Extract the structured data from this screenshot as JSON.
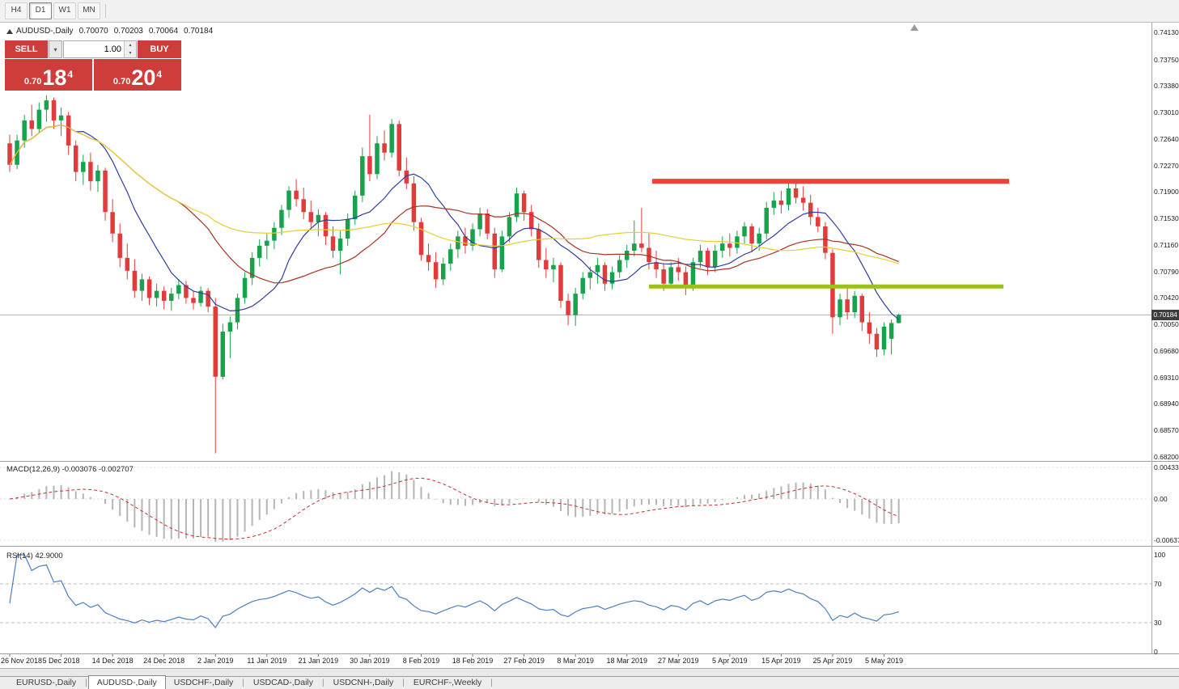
{
  "toolbar": {
    "timeframes": [
      {
        "label": "H4",
        "active": false
      },
      {
        "label": "D1",
        "active": true
      },
      {
        "label": "W1",
        "active": false
      },
      {
        "label": "MN",
        "active": false
      }
    ]
  },
  "trade_panel": {
    "sell_label": "SELL",
    "buy_label": "BUY",
    "volume": "1.00",
    "sell_price": {
      "prefix": "0.70",
      "big": "18",
      "sup": "4"
    },
    "buy_price": {
      "prefix": "0.70",
      "big": "20",
      "sup": "4"
    }
  },
  "chart": {
    "symbol": "AUDUSD-,Daily",
    "open": "0.70070",
    "high": "0.70203",
    "low": "0.70064",
    "close": "0.70184",
    "current_price": "0.70184",
    "current_price_value": 0.70184,
    "scale_top": 0.7413,
    "scale_bottom": 0.682,
    "price_scale": [
      "0.74130",
      "0.73750",
      "0.73380",
      "0.73010",
      "0.72640",
      "0.72270",
      "0.71900",
      "0.71530",
      "0.71160",
      "0.70790",
      "0.70420",
      "0.70050",
      "0.69680",
      "0.69310",
      "0.68940",
      "0.68570",
      "0.68200"
    ],
    "dates": [
      "26 Nov 2018",
      "5 Dec 2018",
      "14 Dec 2018",
      "24 Dec 2018",
      "2 Jan 2019",
      "11 Jan 2019",
      "21 Jan 2019",
      "30 Jan 2019",
      "8 Feb 2019",
      "18 Feb 2019",
      "27 Feb 2019",
      "8 Mar 2019",
      "18 Mar 2019",
      "27 Mar 2019",
      "5 Apr 2019",
      "15 Apr 2019",
      "25 Apr 2019",
      "5 May 2019"
    ],
    "label_every": 7,
    "levels": [
      {
        "type": "resistance",
        "price": 0.7205,
        "color": "#ef4136"
      },
      {
        "type": "support",
        "price": 0.7058,
        "color": "#9bc11c"
      }
    ],
    "colors": {
      "bull": "#18a24c",
      "bear": "#e23b3b",
      "ma_fast": "#2f3d9e",
      "ma_mid": "#a93226",
      "ma_slow": "#e7cf2f",
      "macd_hist": "#b5b5b5",
      "macd_signal": "#c62f2f",
      "rsi": "#4b7fbe",
      "price_line": "#aeaeae",
      "badge_bg": "#3d3d3d",
      "trade_red": "#cf3d3a"
    },
    "candles": [
      [
        0.7258,
        0.727,
        0.7218,
        0.7228
      ],
      [
        0.7228,
        0.727,
        0.7222,
        0.7262
      ],
      [
        0.7262,
        0.7298,
        0.7252,
        0.729
      ],
      [
        0.729,
        0.7312,
        0.7268,
        0.7278
      ],
      [
        0.7278,
        0.7315,
        0.7272,
        0.7305
      ],
      [
        0.7305,
        0.7325,
        0.7288,
        0.7318
      ],
      [
        0.7318,
        0.7322,
        0.7278,
        0.729
      ],
      [
        0.729,
        0.7308,
        0.7268,
        0.7297
      ],
      [
        0.7297,
        0.7302,
        0.7242,
        0.7255
      ],
      [
        0.7255,
        0.7262,
        0.7205,
        0.7218
      ],
      [
        0.7218,
        0.7242,
        0.72,
        0.7232
      ],
      [
        0.7232,
        0.7245,
        0.7192,
        0.7205
      ],
      [
        0.7205,
        0.7228,
        0.719,
        0.722
      ],
      [
        0.722,
        0.7224,
        0.715,
        0.7162
      ],
      [
        0.7162,
        0.718,
        0.712,
        0.7132
      ],
      [
        0.7132,
        0.7146,
        0.7085,
        0.7098
      ],
      [
        0.7098,
        0.7118,
        0.7068,
        0.708
      ],
      [
        0.708,
        0.7096,
        0.7042,
        0.7052
      ],
      [
        0.7052,
        0.7076,
        0.7038,
        0.7068
      ],
      [
        0.7068,
        0.7072,
        0.7032,
        0.7042
      ],
      [
        0.7042,
        0.7062,
        0.703,
        0.7052
      ],
      [
        0.7052,
        0.7058,
        0.7026,
        0.7038
      ],
      [
        0.7038,
        0.7056,
        0.7024,
        0.7048
      ],
      [
        0.7048,
        0.7068,
        0.704,
        0.706
      ],
      [
        0.706,
        0.7066,
        0.7034,
        0.7042
      ],
      [
        0.7042,
        0.7052,
        0.7026,
        0.7035
      ],
      [
        0.7035,
        0.7058,
        0.703,
        0.7052
      ],
      [
        0.7052,
        0.7056,
        0.7022,
        0.703
      ],
      [
        0.703,
        0.7042,
        0.6825,
        0.6932
      ],
      [
        0.6932,
        0.7006,
        0.6928,
        0.6995
      ],
      [
        0.6995,
        0.7016,
        0.6958,
        0.7008
      ],
      [
        0.7008,
        0.7048,
        0.6998,
        0.7042
      ],
      [
        0.7042,
        0.7078,
        0.7034,
        0.707
      ],
      [
        0.707,
        0.7106,
        0.706,
        0.7098
      ],
      [
        0.7098,
        0.7124,
        0.7086,
        0.7115
      ],
      [
        0.7115,
        0.7132,
        0.7096,
        0.7122
      ],
      [
        0.7122,
        0.7148,
        0.711,
        0.714
      ],
      [
        0.714,
        0.7172,
        0.713,
        0.7165
      ],
      [
        0.7165,
        0.7198,
        0.7154,
        0.7192
      ],
      [
        0.7192,
        0.7208,
        0.717,
        0.718
      ],
      [
        0.718,
        0.7196,
        0.7152,
        0.7162
      ],
      [
        0.7162,
        0.7178,
        0.714,
        0.7148
      ],
      [
        0.7148,
        0.7166,
        0.7128,
        0.7158
      ],
      [
        0.7158,
        0.7162,
        0.7116,
        0.7128
      ],
      [
        0.7128,
        0.7142,
        0.7098,
        0.7108
      ],
      [
        0.7108,
        0.7136,
        0.7075,
        0.7125
      ],
      [
        0.7125,
        0.716,
        0.7115,
        0.7152
      ],
      [
        0.7152,
        0.7192,
        0.7144,
        0.7185
      ],
      [
        0.7185,
        0.7252,
        0.7176,
        0.724
      ],
      [
        0.724,
        0.7298,
        0.7205,
        0.7215
      ],
      [
        0.7215,
        0.7268,
        0.7208,
        0.7258
      ],
      [
        0.7258,
        0.7276,
        0.7234,
        0.7245
      ],
      [
        0.7245,
        0.7292,
        0.7238,
        0.7285
      ],
      [
        0.7285,
        0.729,
        0.7212,
        0.722
      ],
      [
        0.722,
        0.7238,
        0.7194,
        0.7202
      ],
      [
        0.7202,
        0.7212,
        0.7136,
        0.7148
      ],
      [
        0.7148,
        0.7154,
        0.7094,
        0.7102
      ],
      [
        0.7102,
        0.7118,
        0.708,
        0.7092
      ],
      [
        0.7092,
        0.7106,
        0.7056,
        0.7068
      ],
      [
        0.7068,
        0.7098,
        0.706,
        0.709
      ],
      [
        0.709,
        0.7118,
        0.708,
        0.711
      ],
      [
        0.711,
        0.7136,
        0.7098,
        0.7128
      ],
      [
        0.7128,
        0.714,
        0.7104,
        0.7115
      ],
      [
        0.7115,
        0.7146,
        0.7108,
        0.7138
      ],
      [
        0.7138,
        0.7168,
        0.7128,
        0.716
      ],
      [
        0.716,
        0.7166,
        0.7124,
        0.7132
      ],
      [
        0.7132,
        0.714,
        0.707,
        0.7082
      ],
      [
        0.7082,
        0.7136,
        0.7078,
        0.7128
      ],
      [
        0.7128,
        0.7162,
        0.712,
        0.7155
      ],
      [
        0.7155,
        0.7196,
        0.7148,
        0.7188
      ],
      [
        0.7188,
        0.7192,
        0.715,
        0.7162
      ],
      [
        0.7162,
        0.7172,
        0.7128,
        0.7138
      ],
      [
        0.7138,
        0.7146,
        0.7084,
        0.7095
      ],
      [
        0.7095,
        0.7112,
        0.707,
        0.7082
      ],
      [
        0.7082,
        0.7098,
        0.7064,
        0.7088
      ],
      [
        0.7088,
        0.7092,
        0.7028,
        0.7038
      ],
      [
        0.7038,
        0.7048,
        0.7004,
        0.7018
      ],
      [
        0.7018,
        0.7056,
        0.7003,
        0.7048
      ],
      [
        0.7048,
        0.7078,
        0.704,
        0.707
      ],
      [
        0.707,
        0.7086,
        0.7054,
        0.7078
      ],
      [
        0.7078,
        0.7098,
        0.7062,
        0.7088
      ],
      [
        0.7088,
        0.7092,
        0.7052,
        0.7062
      ],
      [
        0.7062,
        0.7086,
        0.7054,
        0.7078
      ],
      [
        0.7078,
        0.7102,
        0.707,
        0.7095
      ],
      [
        0.7095,
        0.7116,
        0.7084,
        0.7108
      ],
      [
        0.7108,
        0.715,
        0.71,
        0.7118
      ],
      [
        0.7118,
        0.7168,
        0.7106,
        0.7112
      ],
      [
        0.7112,
        0.7132,
        0.7082,
        0.7092
      ],
      [
        0.7092,
        0.7108,
        0.707,
        0.7082
      ],
      [
        0.7082,
        0.709,
        0.7052,
        0.7062
      ],
      [
        0.7062,
        0.7092,
        0.7056,
        0.7085
      ],
      [
        0.7085,
        0.7098,
        0.7066,
        0.7078
      ],
      [
        0.7078,
        0.7086,
        0.7046,
        0.7058
      ],
      [
        0.7058,
        0.7098,
        0.7052,
        0.7092
      ],
      [
        0.7092,
        0.7116,
        0.7084,
        0.7108
      ],
      [
        0.7108,
        0.7112,
        0.7074,
        0.7085
      ],
      [
        0.7085,
        0.7116,
        0.7078,
        0.7108
      ],
      [
        0.7108,
        0.7128,
        0.7098,
        0.7118
      ],
      [
        0.7118,
        0.7132,
        0.71,
        0.7112
      ],
      [
        0.7112,
        0.7136,
        0.7104,
        0.7128
      ],
      [
        0.7128,
        0.7148,
        0.7118,
        0.7142
      ],
      [
        0.7142,
        0.7146,
        0.7106,
        0.7118
      ],
      [
        0.7118,
        0.714,
        0.7108,
        0.7132
      ],
      [
        0.7132,
        0.7176,
        0.7124,
        0.7168
      ],
      [
        0.7168,
        0.719,
        0.7158,
        0.7178
      ],
      [
        0.7178,
        0.7192,
        0.716,
        0.7172
      ],
      [
        0.7172,
        0.7206,
        0.7164,
        0.7195
      ],
      [
        0.7195,
        0.7204,
        0.7174,
        0.7182
      ],
      [
        0.7182,
        0.7198,
        0.7164,
        0.7175
      ],
      [
        0.7175,
        0.7186,
        0.7144,
        0.7155
      ],
      [
        0.7155,
        0.7168,
        0.7134,
        0.7142
      ],
      [
        0.7142,
        0.7148,
        0.7096,
        0.7105
      ],
      [
        0.7105,
        0.711,
        0.6992,
        0.7015
      ],
      [
        0.7015,
        0.7048,
        0.7004,
        0.704
      ],
      [
        0.704,
        0.7056,
        0.7012,
        0.7022
      ],
      [
        0.7022,
        0.7052,
        0.7014,
        0.7045
      ],
      [
        0.7045,
        0.7048,
        0.6996,
        0.7008
      ],
      [
        0.7008,
        0.7022,
        0.6978,
        0.6992
      ],
      [
        0.6992,
        0.7,
        0.696,
        0.697
      ],
      [
        0.697,
        0.7008,
        0.6962,
        0.7002
      ],
      [
        0.6985,
        0.7012,
        0.6963,
        0.7007
      ],
      [
        0.7007,
        0.70203,
        0.70064,
        0.70184
      ]
    ]
  },
  "macd": {
    "label": "MACD(12,26,9) -0.003076 -0.002707",
    "scale": [
      "0.004331",
      "0.00",
      "-0.00637"
    ],
    "fast": 12,
    "slow": 26,
    "signal": 9
  },
  "rsi": {
    "label": "RSI(14) 42.9000",
    "scale": [
      "100",
      "70",
      "30",
      "0"
    ],
    "period": 14,
    "levels": [
      70,
      30
    ]
  },
  "tabs": [
    {
      "label": "EURUSD-,Daily",
      "active": false
    },
    {
      "label": "AUDUSD-,Daily",
      "active": true
    },
    {
      "label": "USDCHF-,Daily",
      "active": false
    },
    {
      "label": "USDCAD-,Daily",
      "active": false
    },
    {
      "label": "USDCNH-,Daily",
      "active": false
    },
    {
      "label": "EURCHF-,Weekly",
      "active": false
    }
  ]
}
